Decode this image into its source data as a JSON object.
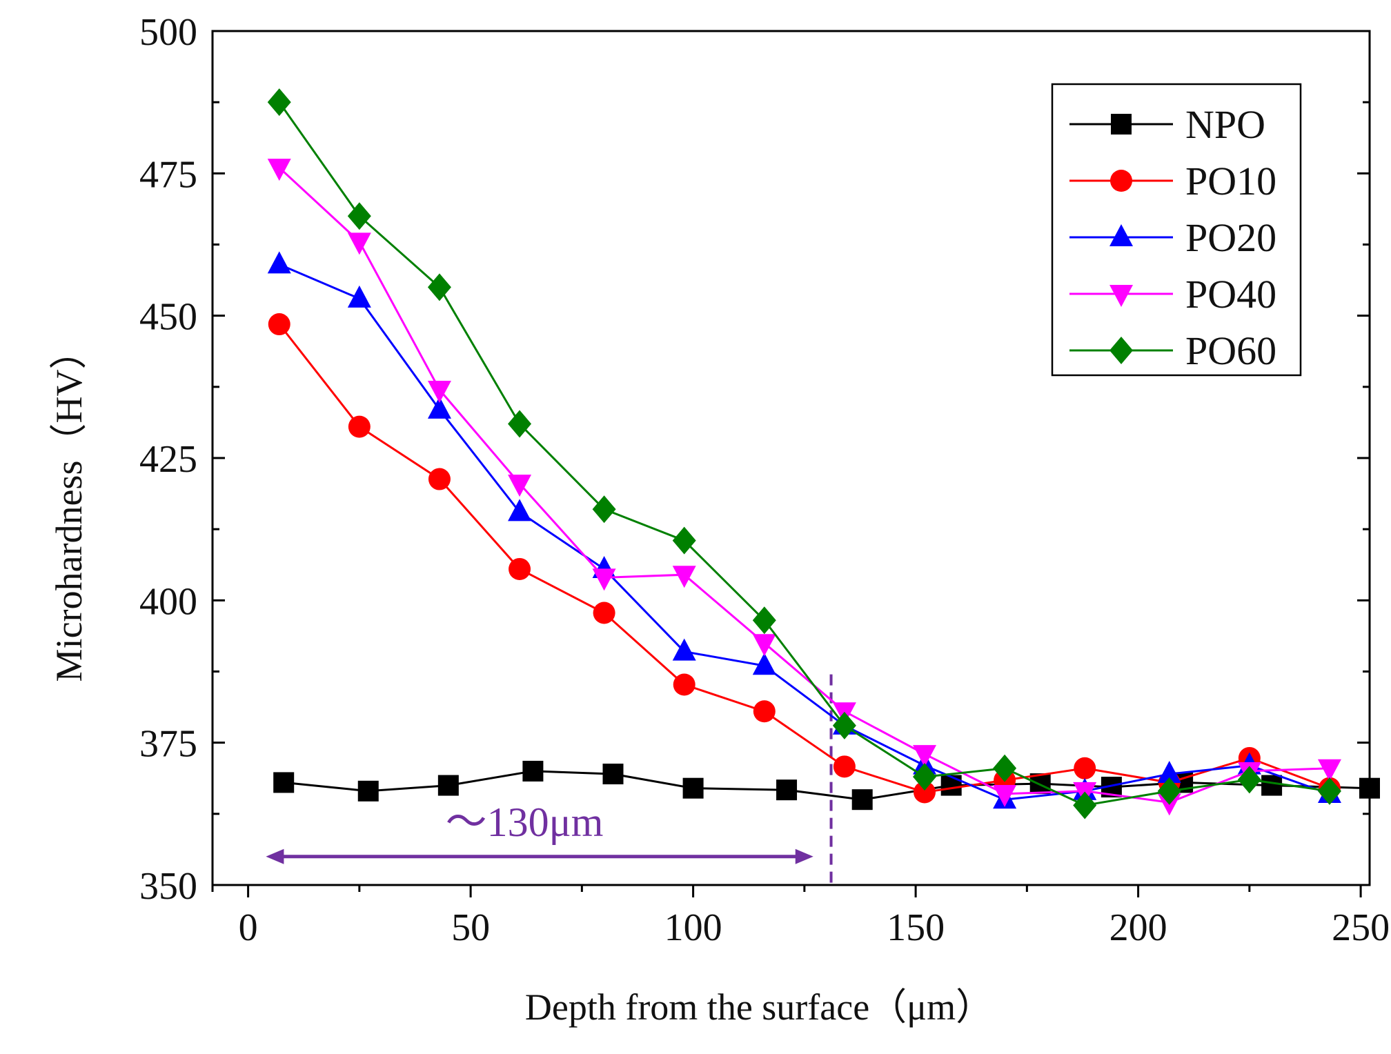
{
  "chart_data": {
    "type": "line",
    "xlabel": "Depth from the surface（μm）",
    "ylabel": "Microhardness（HV）",
    "xlim": [
      -8,
      252
    ],
    "ylim": [
      350,
      500
    ],
    "xticks": [
      0,
      50,
      100,
      150,
      200,
      250
    ],
    "yticks": [
      350,
      375,
      400,
      425,
      450,
      475,
      500
    ],
    "legend_position": "top-right",
    "annotation": {
      "label": "～130μm",
      "arrow_from": 4,
      "arrow_to": 127,
      "y": 355,
      "vline_x": 131,
      "vline_y_top": 387,
      "color": "#7030a0"
    },
    "series": [
      {
        "name": "NPO",
        "color": "#000000",
        "marker": "square",
        "x": [
          8,
          27,
          45,
          64,
          82,
          100,
          121,
          138,
          158,
          178,
          194,
          210,
          230,
          252
        ],
        "y": [
          368,
          366.5,
          367.5,
          370,
          369.5,
          367,
          366.7,
          365,
          367.5,
          367.8,
          367.2,
          368,
          367.5,
          367
        ]
      },
      {
        "name": "PO10",
        "color": "#ff0000",
        "marker": "circle",
        "x": [
          7,
          25,
          43,
          61,
          80,
          98,
          116,
          134,
          152,
          170,
          188,
          207,
          225,
          243
        ],
        "y": [
          448.5,
          430.5,
          421.3,
          405.5,
          397.8,
          385.2,
          380.5,
          370.8,
          366.3,
          368.4,
          370.5,
          368,
          372.3,
          367
        ]
      },
      {
        "name": "PO20",
        "color": "#0000ff",
        "marker": "triangle-up",
        "x": [
          7,
          25,
          43,
          61,
          80,
          98,
          116,
          134,
          152,
          170,
          188,
          207,
          225,
          243
        ],
        "y": [
          459,
          453,
          433.5,
          415.5,
          405.5,
          391,
          388.5,
          378,
          371,
          365,
          366.5,
          369.5,
          371,
          366
        ]
      },
      {
        "name": "PO40",
        "color": "#ff00ff",
        "marker": "triangle-down",
        "x": [
          7,
          25,
          43,
          61,
          80,
          98,
          116,
          134,
          152,
          170,
          188,
          207,
          225,
          243
        ],
        "y": [
          476,
          463,
          437,
          420.5,
          404,
          404.5,
          392.5,
          380.5,
          373,
          366,
          366.5,
          364.5,
          370,
          370.5
        ]
      },
      {
        "name": "PO60",
        "color": "#008000",
        "marker": "diamond",
        "x": [
          7,
          25,
          43,
          61,
          80,
          98,
          116,
          134,
          152,
          170,
          188,
          207,
          225,
          243
        ],
        "y": [
          487.5,
          467.5,
          455,
          431,
          416,
          410.5,
          396.5,
          378,
          369,
          370.5,
          364,
          366.5,
          368.5,
          366.5
        ]
      }
    ]
  }
}
